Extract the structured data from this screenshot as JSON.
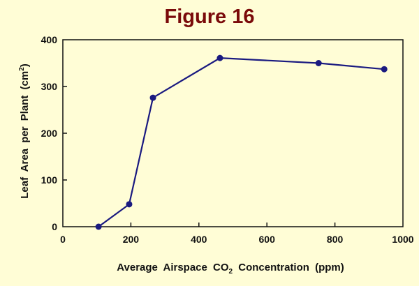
{
  "chart_data": {
    "type": "line",
    "title": "Figure 16",
    "xlabel": "Average Airspace CO",
    "xlabel_sub": "2",
    "xlabel_rest": " Concentration (ppm)",
    "ylabel": "Leaf Area per Plant (cm",
    "ylabel_sup": "2",
    "ylabel_rest": ")",
    "xlim": [
      0,
      1000
    ],
    "ylim": [
      0,
      400
    ],
    "xticks": [
      0,
      200,
      400,
      600,
      800,
      1000
    ],
    "yticks": [
      0,
      100,
      200,
      300,
      400
    ],
    "grid": false,
    "series": [
      {
        "name": "Leaf Area",
        "color": "#1a1a80",
        "x": [
          105,
          195,
          265,
          462,
          752,
          945
        ],
        "y": [
          0,
          48,
          276,
          361,
          350,
          337
        ]
      }
    ]
  }
}
